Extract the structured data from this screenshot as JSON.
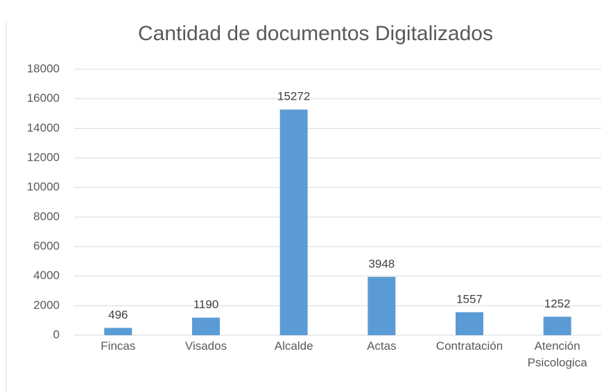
{
  "chart_data": {
    "type": "bar",
    "title": "Cantidad de documentos Digitalizados",
    "categories": [
      "Fincas",
      "Visados",
      "Alcalde",
      "Actas",
      "Contratación",
      "Atención Psicologica"
    ],
    "values": [
      496,
      1190,
      15272,
      3948,
      1557,
      1252
    ],
    "color": "#5b9bd5",
    "ylim": [
      0,
      18000
    ],
    "yticks": [
      0,
      2000,
      4000,
      6000,
      8000,
      10000,
      12000,
      14000,
      16000,
      18000
    ],
    "grid": true
  }
}
